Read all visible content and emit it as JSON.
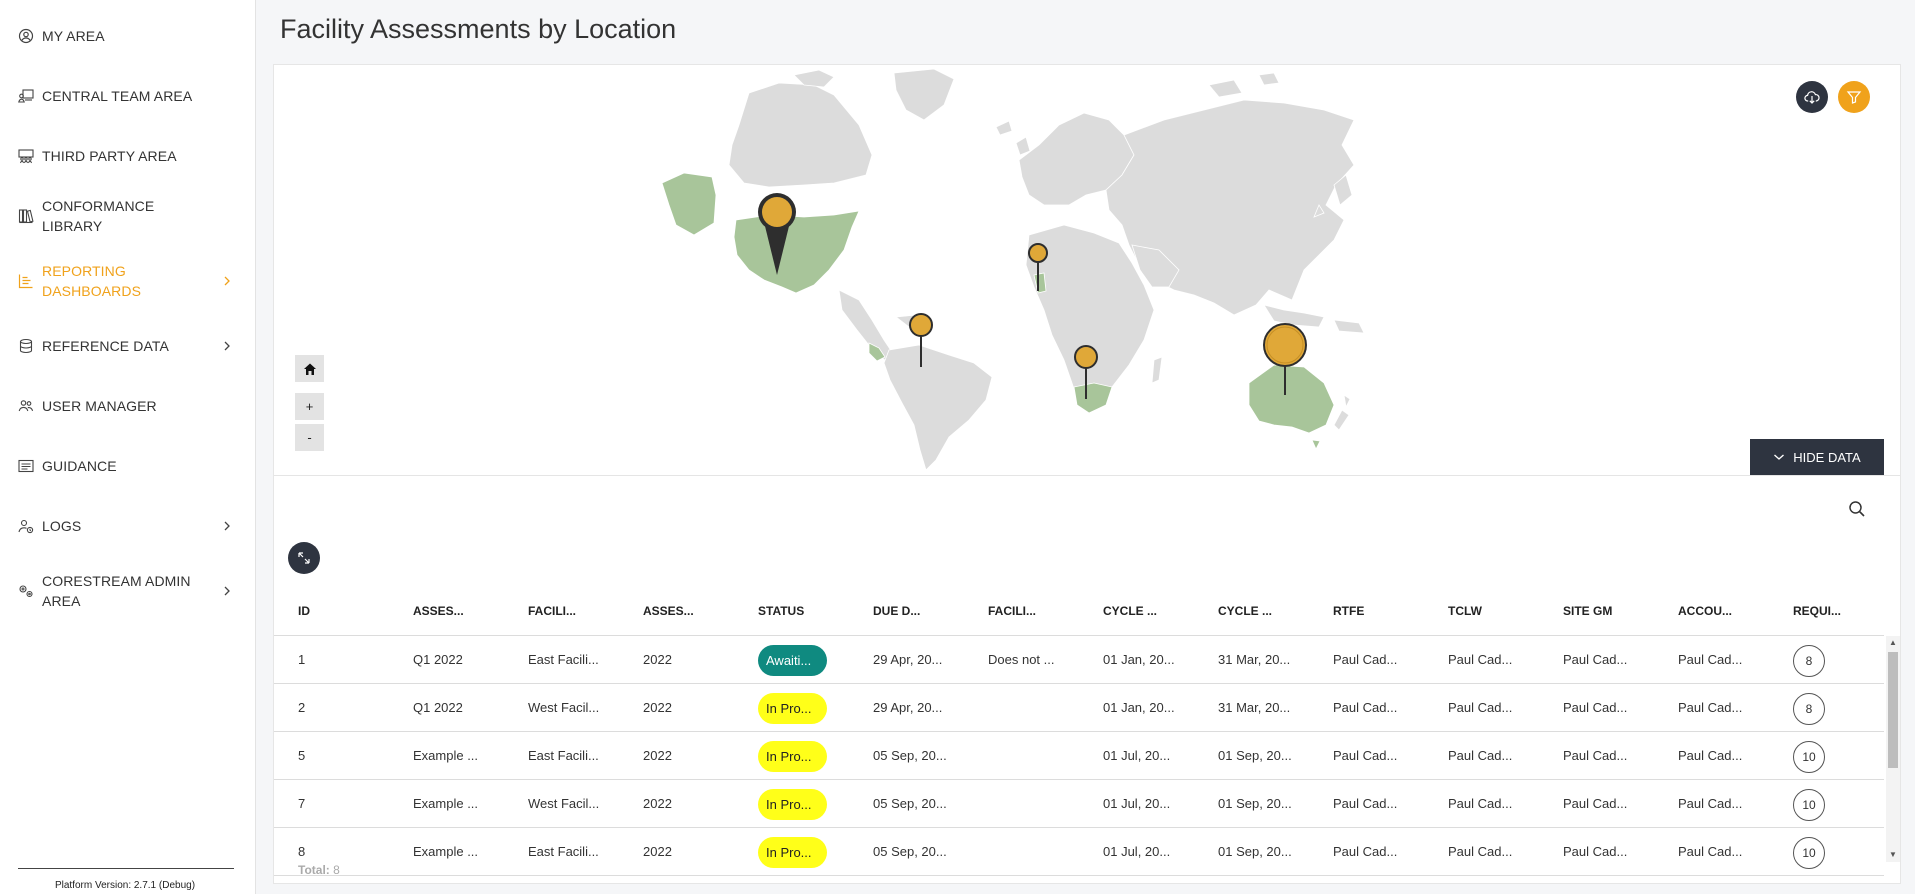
{
  "sidebar": {
    "items": [
      {
        "label": "MY AREA",
        "icon": "user-circle-icon"
      },
      {
        "label": "CENTRAL TEAM AREA",
        "icon": "team-board-icon"
      },
      {
        "label": "THIRD PARTY AREA",
        "icon": "group-board-icon"
      },
      {
        "label": "CONFORMANCE LIBRARY",
        "icon": "library-icon"
      },
      {
        "label": "REPORTING DASHBOARDS",
        "icon": "bar-chart-icon",
        "active": true
      },
      {
        "label": "REFERENCE DATA",
        "icon": "database-icon"
      },
      {
        "label": "USER MANAGER",
        "icon": "users-icon"
      },
      {
        "label": "GUIDANCE",
        "icon": "guidance-icon"
      },
      {
        "label": "LOGS",
        "icon": "user-log-icon"
      },
      {
        "label": "CORESTREAM ADMIN AREA",
        "icon": "gears-icon"
      }
    ],
    "version": "Platform Version: 2.7.1 (Debug)"
  },
  "page": {
    "title": "Facility Assessments by Location"
  },
  "map": {
    "zoom_in": "+",
    "zoom_out": "-",
    "hide_data_label": "HIDE DATA",
    "colors": {
      "land": "#dcdcdc",
      "highlight": "#a8c59a",
      "marker": "#e0a838",
      "marker_dark": "#2e2e2e",
      "accent": "#f0a21b"
    }
  },
  "table": {
    "columns": [
      "ID",
      "ASSES...",
      "FACILI...",
      "ASSES...",
      "STATUS",
      "DUE D...",
      "FACILI...",
      "CYCLE ...",
      "CYCLE ...",
      "RTFE",
      "TCLW",
      "SITE GM",
      "ACCOU...",
      "REQUI..."
    ],
    "rows": [
      {
        "id": "1",
        "assessment": "Q1 2022",
        "facility": "East Facili...",
        "year": "2022",
        "status": "Awaiti...",
        "status_color": "#0f8a80",
        "status_text_color": "#ffffff",
        "due": "29 Apr, 20...",
        "facility_note": "Does not ...",
        "cycle_start": "01 Jan, 20...",
        "cycle_end": "31 Mar, 20...",
        "rtfe": "Paul Cad...",
        "tclw": "Paul Cad...",
        "site_gm": "Paul Cad...",
        "account": "Paul Cad...",
        "req": "8"
      },
      {
        "id": "2",
        "assessment": "Q1 2022",
        "facility": "West Facil...",
        "year": "2022",
        "status": "In Pro...",
        "status_color": "#ffff19",
        "status_text_color": "#222222",
        "due": "29 Apr, 20...",
        "facility_note": "",
        "cycle_start": "01 Jan, 20...",
        "cycle_end": "31 Mar, 20...",
        "rtfe": "Paul Cad...",
        "tclw": "Paul Cad...",
        "site_gm": "Paul Cad...",
        "account": "Paul Cad...",
        "req": "8"
      },
      {
        "id": "5",
        "assessment": "Example ...",
        "facility": "East Facili...",
        "year": "2022",
        "status": "In Pro...",
        "status_color": "#ffff19",
        "status_text_color": "#222222",
        "due": "05 Sep, 20...",
        "facility_note": "",
        "cycle_start": "01 Jul, 20...",
        "cycle_end": "01 Sep, 20...",
        "rtfe": "Paul Cad...",
        "tclw": "Paul Cad...",
        "site_gm": "Paul Cad...",
        "account": "Paul Cad...",
        "req": "10"
      },
      {
        "id": "7",
        "assessment": "Example ...",
        "facility": "West Facil...",
        "year": "2022",
        "status": "In Pro...",
        "status_color": "#ffff19",
        "status_text_color": "#222222",
        "due": "05 Sep, 20...",
        "facility_note": "",
        "cycle_start": "01 Jul, 20...",
        "cycle_end": "01 Sep, 20...",
        "rtfe": "Paul Cad...",
        "tclw": "Paul Cad...",
        "site_gm": "Paul Cad...",
        "account": "Paul Cad...",
        "req": "10"
      },
      {
        "id": "8",
        "assessment": "Example ...",
        "facility": "East Facili...",
        "year": "2022",
        "status": "In Pro...",
        "status_color": "#ffff19",
        "status_text_color": "#222222",
        "due": "05 Sep, 20...",
        "facility_note": "",
        "cycle_start": "01 Jul, 20...",
        "cycle_end": "01 Sep, 20...",
        "rtfe": "Paul Cad...",
        "tclw": "Paul Cad...",
        "site_gm": "Paul Cad...",
        "account": "Paul Cad...",
        "req": "10"
      }
    ],
    "total_label": "Total:",
    "total_value": "8"
  }
}
